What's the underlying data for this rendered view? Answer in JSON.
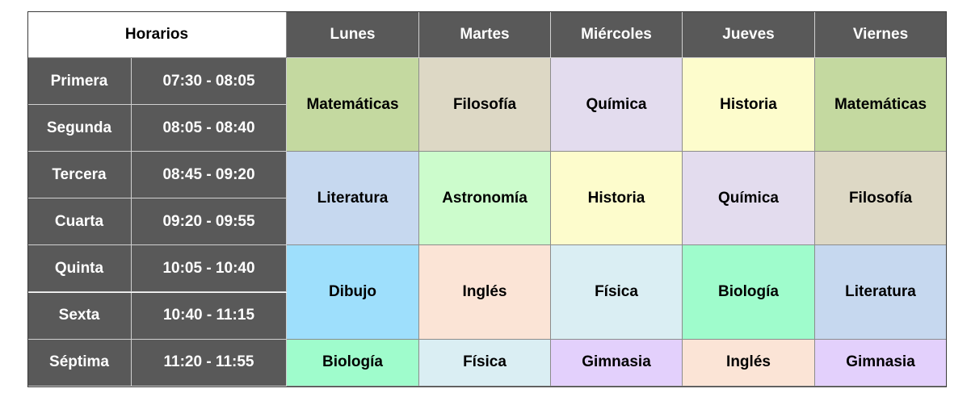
{
  "header": {
    "title": "Horarios",
    "days": [
      "Lunes",
      "Martes",
      "Miércoles",
      "Jueves",
      "Viernes"
    ]
  },
  "blocks": [
    {
      "periods": [
        {
          "name": "Primera",
          "time": "07:30 - 08:05"
        },
        {
          "name": "Segunda",
          "time": "08:05 - 08:40"
        }
      ],
      "cells": [
        {
          "subject": "Matemáticas",
          "color": "#c4d9a0"
        },
        {
          "subject": "Filosofía",
          "color": "#ddd8c5"
        },
        {
          "subject": "Química",
          "color": "#e3dcee"
        },
        {
          "subject": "Historia",
          "color": "#fdfccc"
        },
        {
          "subject": "Matemáticas",
          "color": "#c4d9a0"
        }
      ]
    },
    {
      "periods": [
        {
          "name": "Tercera",
          "time": "08:45 - 09:20"
        },
        {
          "name": "Cuarta",
          "time": "09:20 - 09:55"
        }
      ],
      "cells": [
        {
          "subject": "Literatura",
          "color": "#c6d8ef"
        },
        {
          "subject": "Astronomía",
          "color": "#ccfccc"
        },
        {
          "subject": "Historia",
          "color": "#fdfccc"
        },
        {
          "subject": "Química",
          "color": "#e3dcee"
        },
        {
          "subject": "Filosofía",
          "color": "#ddd8c5"
        }
      ]
    },
    {
      "periods": [
        {
          "name": "Quinta",
          "time": "10:05 - 10:40"
        },
        {
          "name": "Sexta",
          "time": "10:40 - 11:15"
        }
      ],
      "cells": [
        {
          "subject": "Dibujo",
          "color": "#9edffc"
        },
        {
          "subject": "Inglés",
          "color": "#fbe4d6"
        },
        {
          "subject": "Física",
          "color": "#daeef3"
        },
        {
          "subject": "Biología",
          "color": "#9ffccc"
        },
        {
          "subject": "Literatura",
          "color": "#c6d8ef"
        }
      ]
    },
    {
      "periods": [
        {
          "name": "Séptima",
          "time": "11:20 - 11:55"
        }
      ],
      "cells": [
        {
          "subject": "Biología",
          "color": "#9ffccc"
        },
        {
          "subject": "Física",
          "color": "#daeef3"
        },
        {
          "subject": "Gimnasia",
          "color": "#e3d0fc"
        },
        {
          "subject": "Inglés",
          "color": "#fbe4d6"
        },
        {
          "subject": "Gimnasia",
          "color": "#e3d0fc"
        }
      ]
    }
  ]
}
